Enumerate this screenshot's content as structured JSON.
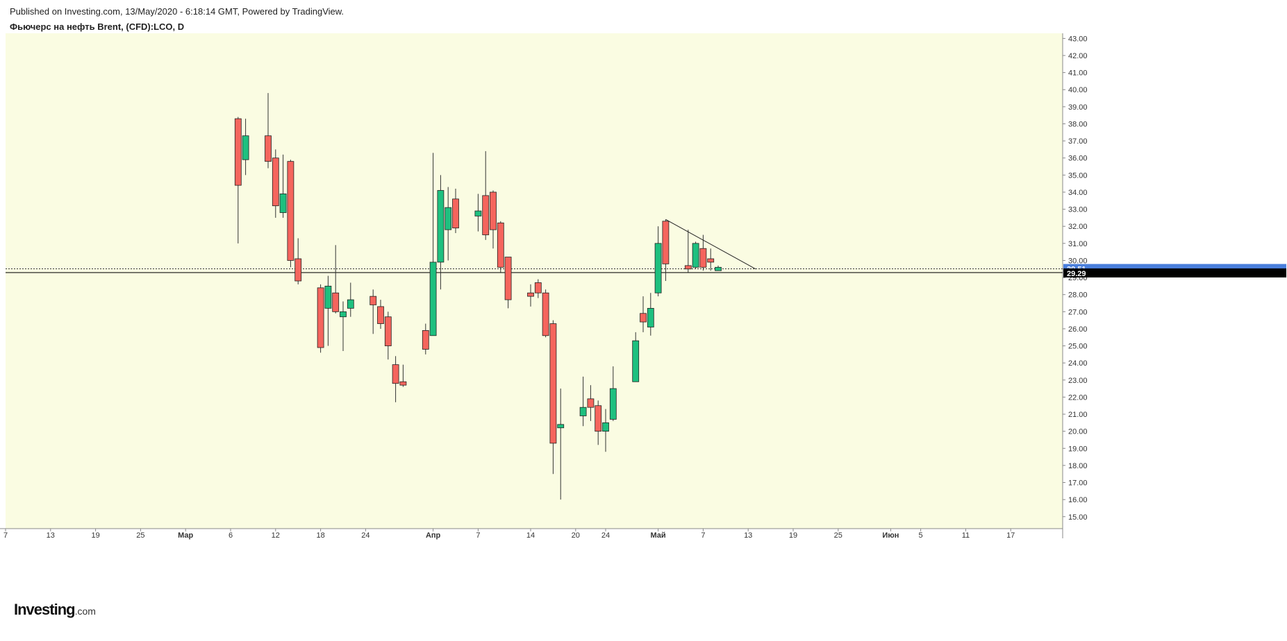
{
  "header": {
    "published": "Published on Investing.com, 13/May/2020 - 6:18:14 GMT, Powered by TradingView.",
    "title": "Фьючерс на нефть Brent, (CFD):LCO, D"
  },
  "logo": {
    "main": "Investing",
    "domain": ".com"
  },
  "colors": {
    "background": "#fafce2",
    "up": "#1ec07f",
    "down": "#f5655d",
    "wick": "#333333",
    "last_price_tag": "#4a7fdc",
    "ref_price_tag": "#000000"
  },
  "chart_data": {
    "type": "candlestick",
    "ylim": [
      14.3,
      43.3
    ],
    "y_ticks": [
      "15.00",
      "16.00",
      "17.00",
      "18.00",
      "19.00",
      "20.00",
      "21.00",
      "22.00",
      "23.00",
      "24.00",
      "25.00",
      "26.00",
      "27.00",
      "28.00",
      "29.00",
      "30.00",
      "31.00",
      "32.00",
      "33.00",
      "34.00",
      "35.00",
      "36.00",
      "37.00",
      "38.00",
      "39.00",
      "40.00",
      "41.00",
      "42.00",
      "43.00"
    ],
    "x_ticks": [
      {
        "label": "7",
        "day": 0,
        "bold": false
      },
      {
        "label": "13",
        "day": 6,
        "bold": false
      },
      {
        "label": "19",
        "day": 12,
        "bold": false
      },
      {
        "label": "25",
        "day": 18,
        "bold": false
      },
      {
        "label": "Мар",
        "day": 24,
        "bold": true
      },
      {
        "label": "6",
        "day": 30,
        "bold": false
      },
      {
        "label": "12",
        "day": 36,
        "bold": false
      },
      {
        "label": "18",
        "day": 42,
        "bold": false
      },
      {
        "label": "24",
        "day": 48,
        "bold": false
      },
      {
        "label": "Апр",
        "day": 57,
        "bold": true
      },
      {
        "label": "7",
        "day": 63,
        "bold": false
      },
      {
        "label": "14",
        "day": 70,
        "bold": false
      },
      {
        "label": "20",
        "day": 76,
        "bold": false
      },
      {
        "label": "24",
        "day": 80,
        "bold": false
      },
      {
        "label": "Май",
        "day": 87,
        "bold": true
      },
      {
        "label": "7",
        "day": 93,
        "bold": false
      },
      {
        "label": "13",
        "day": 99,
        "bold": false
      },
      {
        "label": "19",
        "day": 105,
        "bold": false
      },
      {
        "label": "25",
        "day": 111,
        "bold": false
      },
      {
        "label": "Июн",
        "day": 118,
        "bold": true
      },
      {
        "label": "5",
        "day": 122,
        "bold": false
      },
      {
        "label": "11",
        "day": 128,
        "bold": false
      },
      {
        "label": "17",
        "day": 134,
        "bold": false
      }
    ],
    "candles": [
      {
        "day": 31,
        "o": 38.3,
        "h": 38.4,
        "l": 31.0,
        "c": 34.4
      },
      {
        "day": 32,
        "o": 35.9,
        "h": 38.3,
        "l": 35.0,
        "c": 37.3
      },
      {
        "day": 35,
        "o": 37.3,
        "h": 39.8,
        "l": 35.4,
        "c": 35.8
      },
      {
        "day": 36,
        "o": 36.0,
        "h": 36.5,
        "l": 32.5,
        "c": 33.2
      },
      {
        "day": 37,
        "o": 32.8,
        "h": 36.2,
        "l": 32.5,
        "c": 33.9
      },
      {
        "day": 38,
        "o": 35.8,
        "h": 35.9,
        "l": 29.6,
        "c": 30.0
      },
      {
        "day": 39,
        "o": 30.1,
        "h": 31.3,
        "l": 28.6,
        "c": 28.8
      },
      {
        "day": 42,
        "o": 28.4,
        "h": 28.6,
        "l": 24.6,
        "c": 24.9
      },
      {
        "day": 43,
        "o": 27.2,
        "h": 29.1,
        "l": 25.0,
        "c": 28.5
      },
      {
        "day": 44,
        "o": 28.1,
        "h": 30.9,
        "l": 26.9,
        "c": 27.0
      },
      {
        "day": 45,
        "o": 26.7,
        "h": 27.6,
        "l": 24.7,
        "c": 27.0
      },
      {
        "day": 46,
        "o": 27.2,
        "h": 28.7,
        "l": 26.7,
        "c": 27.7
      },
      {
        "day": 49,
        "o": 27.9,
        "h": 28.3,
        "l": 25.7,
        "c": 27.4
      },
      {
        "day": 50,
        "o": 27.3,
        "h": 27.7,
        "l": 26.0,
        "c": 26.3
      },
      {
        "day": 51,
        "o": 26.7,
        "h": 27.0,
        "l": 24.2,
        "c": 25.0
      },
      {
        "day": 52,
        "o": 23.9,
        "h": 24.4,
        "l": 21.7,
        "c": 22.8
      },
      {
        "day": 53,
        "o": 22.9,
        "h": 23.9,
        "l": 22.6,
        "c": 22.7
      },
      {
        "day": 56,
        "o": 25.9,
        "h": 26.3,
        "l": 24.5,
        "c": 24.8
      },
      {
        "day": 57,
        "o": 25.6,
        "h": 36.3,
        "l": 25.6,
        "c": 29.9
      },
      {
        "day": 58,
        "o": 29.9,
        "h": 35.0,
        "l": 28.3,
        "c": 34.1
      },
      {
        "day": 59,
        "o": 31.8,
        "h": 34.3,
        "l": 30.0,
        "c": 33.1
      },
      {
        "day": 60,
        "o": 33.6,
        "h": 34.2,
        "l": 31.6,
        "c": 31.9
      },
      {
        "day": 63,
        "o": 32.6,
        "h": 33.9,
        "l": 31.7,
        "c": 32.9
      },
      {
        "day": 64,
        "o": 33.8,
        "h": 36.4,
        "l": 31.2,
        "c": 31.5
      },
      {
        "day": 65,
        "o": 34.0,
        "h": 34.1,
        "l": 30.7,
        "c": 31.8
      },
      {
        "day": 66,
        "o": 32.2,
        "h": 32.3,
        "l": 29.3,
        "c": 29.6
      },
      {
        "day": 67,
        "o": 30.2,
        "h": 30.2,
        "l": 27.2,
        "c": 27.7
      },
      {
        "day": 70,
        "o": 28.1,
        "h": 28.6,
        "l": 27.3,
        "c": 27.9
      },
      {
        "day": 71,
        "o": 28.7,
        "h": 28.9,
        "l": 27.8,
        "c": 28.1
      },
      {
        "day": 72,
        "o": 28.1,
        "h": 28.3,
        "l": 25.5,
        "c": 25.6
      },
      {
        "day": 73,
        "o": 26.3,
        "h": 26.5,
        "l": 17.5,
        "c": 19.3
      },
      {
        "day": 74,
        "o": 20.2,
        "h": 22.5,
        "l": 16.0,
        "c": 20.4
      },
      {
        "day": 77,
        "o": 20.9,
        "h": 23.2,
        "l": 20.3,
        "c": 21.4
      },
      {
        "day": 78,
        "o": 21.9,
        "h": 22.7,
        "l": 20.6,
        "c": 21.4
      },
      {
        "day": 79,
        "o": 21.5,
        "h": 21.8,
        "l": 19.2,
        "c": 20.0
      },
      {
        "day": 80,
        "o": 20.0,
        "h": 21.3,
        "l": 18.8,
        "c": 20.5
      },
      {
        "day": 81,
        "o": 20.7,
        "h": 23.8,
        "l": 20.6,
        "c": 22.5
      },
      {
        "day": 84,
        "o": 22.9,
        "h": 25.8,
        "l": 22.9,
        "c": 25.3
      },
      {
        "day": 85,
        "o": 26.9,
        "h": 27.9,
        "l": 25.8,
        "c": 26.4
      },
      {
        "day": 86,
        "o": 26.1,
        "h": 28.1,
        "l": 25.6,
        "c": 27.2
      },
      {
        "day": 87,
        "o": 28.1,
        "h": 32.0,
        "l": 27.9,
        "c": 31.0
      },
      {
        "day": 88,
        "o": 32.3,
        "h": 32.4,
        "l": 28.8,
        "c": 29.8
      },
      {
        "day": 91,
        "o": 29.7,
        "h": 31.8,
        "l": 29.3,
        "c": 29.5
      },
      {
        "day": 92,
        "o": 29.6,
        "h": 31.1,
        "l": 29.5,
        "c": 31.0
      },
      {
        "day": 93,
        "o": 30.7,
        "h": 31.5,
        "l": 29.4,
        "c": 29.6
      },
      {
        "day": 94,
        "o": 30.1,
        "h": 30.7,
        "l": 29.4,
        "c": 29.9
      },
      {
        "day": 95,
        "o": 29.4,
        "h": 29.7,
        "l": 29.4,
        "c": 29.6
      }
    ],
    "trendline": {
      "from": {
        "day": 88,
        "price": 32.4
      },
      "to": {
        "day": 100,
        "price": 29.5
      }
    },
    "last_price": "29.51",
    "ref_price": "29.29"
  }
}
